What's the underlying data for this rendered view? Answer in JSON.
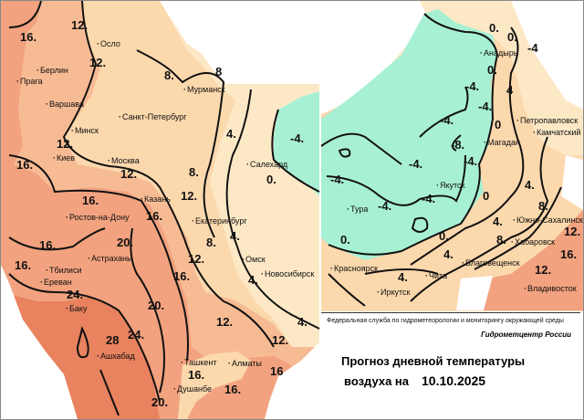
{
  "title_line1": "Прогноз дневной температуры",
  "title_line2": "воздуха на",
  "date": "10.10.2025",
  "agency": "Федеральная служба по гидрометеорологии и мониторингу окружающей среды",
  "center": "Гидрометцентр России",
  "colors": {
    "t_above_24": "#e8825f",
    "t_16_24": "#f2a27f",
    "t_12_16": "#f7bb94",
    "t_4_12": "#fcd8ad",
    "t_0_4": "#fde8c6",
    "t_below_0": "#a8f0d4"
  },
  "cities": [
    "Осло",
    "Берлин",
    "Прага",
    "Варшава",
    "Минск",
    "Санкт-Петербург",
    "Мурманск",
    "Киев",
    "Москва",
    "Салехард",
    "Казань",
    "Ростов-на-Дону",
    "Екатеринбург",
    "Астрахань",
    "Тбилиси",
    "Ереван",
    "Омск",
    "Новосибирск",
    "Баку",
    "Ашхабад",
    "Ташкент",
    "Алматы",
    "Душанбе",
    "Анадырь",
    "Петропавловск",
    "Камчатский",
    "Магадан",
    "Якутск",
    "Тура",
    "Южно-Сахалинск",
    "Хабаровск",
    "Благовещенск",
    "Красноярск",
    "Чита",
    "Иркутск",
    "Владивосток"
  ],
  "isotherm_labels": [
    "12.",
    "16.",
    "12.",
    "8.",
    "8",
    "4.",
    "-4.",
    "0.",
    "16.",
    "12.",
    "12.",
    "8.",
    "16.",
    "12.",
    "16.",
    "4.",
    "8.",
    "16.",
    "20.",
    "12.",
    "16.",
    "4.",
    "16.",
    "24.",
    "20.",
    "12.",
    "4.",
    "24.",
    "28",
    "12.",
    "16",
    "16.",
    "20.",
    "16.",
    "0.",
    "0.",
    "-4",
    "4",
    "0.",
    "-4.",
    "-4.",
    "-4.",
    "0",
    "-8.",
    "-4.",
    "-4.",
    "-4.",
    "-4.",
    "-4.",
    "0",
    "4.",
    "8.",
    "4.",
    "12.",
    "8.",
    "0.",
    "16.",
    "0.",
    "4.",
    "12.",
    "4."
  ]
}
